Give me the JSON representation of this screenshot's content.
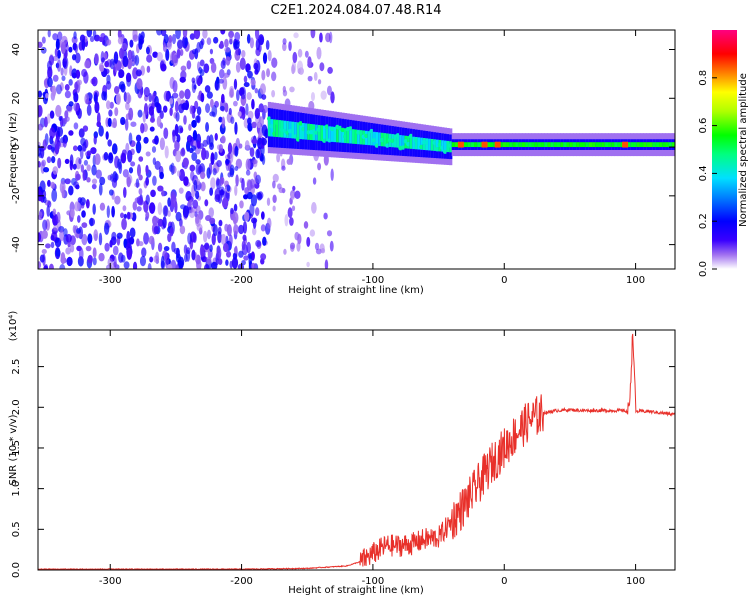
{
  "title": "C2E1.2024.084.07.48.R14",
  "colors": {
    "line": "#e8302a",
    "background": "#ffffff",
    "axis": "#000000"
  },
  "chart_data": [
    {
      "type": "heatmap",
      "xlabel": "Height of straight line (km)",
      "ylabel": "Frequency (Hz)",
      "xlim": [
        -355,
        130
      ],
      "ylim": [
        -50,
        48
      ],
      "xticks": [
        "-300",
        "-200",
        "-100",
        "0",
        "100"
      ],
      "yticks": [
        "-40",
        "-20",
        "0",
        "20",
        "40"
      ],
      "colorbar": {
        "label": "Normalized spectral amplitude",
        "range": [
          0,
          1
        ],
        "ticks": [
          "0.0",
          "0.2",
          "0.4",
          "0.6",
          "0.8"
        ],
        "colormap": "hsv-like: white/violet at 0, blue, cyan, green, yellow, red, magenta at 1"
      },
      "bands": [
        {
          "description": "dense scattered noise",
          "x": [
            -355,
            -180
          ],
          "y": [
            -50,
            48
          ],
          "amplitude": 0.15
        },
        {
          "description": "fading scattered noise",
          "x": [
            -180,
            -130
          ],
          "y": [
            -50,
            48
          ],
          "amplitude": 0.08
        },
        {
          "description": "signal band",
          "x": [
            -180,
            -40
          ],
          "y_center": [
            8,
            0
          ],
          "amplitude": 0.45
        },
        {
          "description": "signal line",
          "x": [
            -40,
            130
          ],
          "y_center": [
            1,
            1
          ],
          "amplitude": 0.55
        }
      ]
    },
    {
      "type": "line",
      "xlabel": "Height of straight line (km)",
      "ylabel": "SNR (10 * v/v)",
      "scale_label": "(x10⁴)",
      "xlim": [
        -355,
        130
      ],
      "ylim": [
        0,
        2.95
      ],
      "xticks": [
        "-300",
        "-200",
        "-100",
        "0",
        "100"
      ],
      "yticks": [
        "0.0",
        "0.5",
        "1.0",
        "1.5",
        "2.0",
        "2.5"
      ],
      "series": [
        {
          "x": [
            -355,
            -300,
            -250,
            -200,
            -150,
            -120,
            -110,
            -100,
            -90,
            -80,
            -70,
            -60,
            -50,
            -40,
            -30,
            -20,
            -10,
            0,
            10,
            20,
            30,
            40,
            50,
            60,
            70,
            80,
            90,
            95,
            98,
            100,
            110,
            120,
            130
          ],
          "values": [
            0.01,
            0.01,
            0.01,
            0.01,
            0.02,
            0.05,
            0.1,
            0.2,
            0.3,
            0.3,
            0.32,
            0.38,
            0.4,
            0.6,
            0.8,
            1.05,
            1.3,
            1.5,
            1.7,
            1.85,
            1.93,
            1.96,
            1.97,
            1.96,
            1.96,
            1.96,
            1.96,
            1.95,
            2.95,
            1.95,
            1.95,
            1.93,
            1.91
          ]
        }
      ]
    }
  ]
}
